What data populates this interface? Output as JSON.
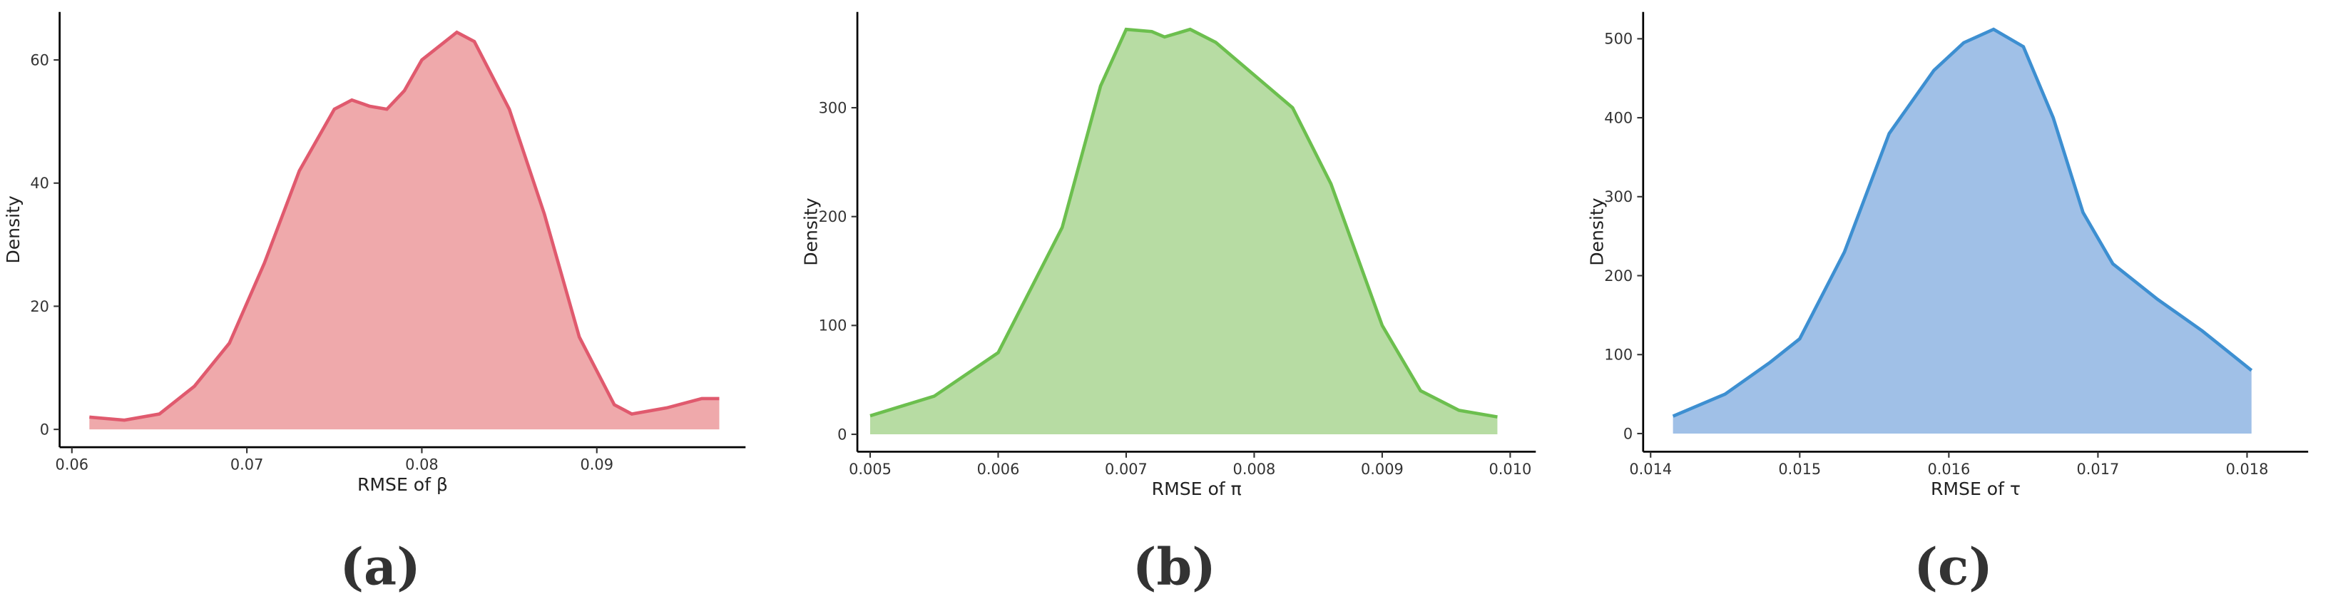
{
  "chart_data": [
    {
      "type": "area",
      "caption": "(a)",
      "x_label": "RMSE of β",
      "y_label": "Density",
      "color": "#e05a6e",
      "fill": "#efa9ab",
      "x": [
        0.061,
        0.063,
        0.065,
        0.067,
        0.069,
        0.071,
        0.073,
        0.075,
        0.076,
        0.077,
        0.078,
        0.079,
        0.08,
        0.082,
        0.083,
        0.085,
        0.087,
        0.089,
        0.091,
        0.092,
        0.094,
        0.096,
        0.097
      ],
      "values": [
        2,
        1.5,
        2.5,
        7,
        14,
        27,
        42,
        52,
        53.5,
        52.5,
        52,
        55,
        60,
        64.5,
        63,
        52,
        35,
        15,
        4,
        2.5,
        3.5,
        5,
        5
      ],
      "xlim": [
        0.0593,
        0.0985
      ],
      "ylim": [
        -2.9,
        67.8
      ],
      "xticks": [
        0.06,
        0.07,
        0.08,
        0.09
      ],
      "yticks": [
        0,
        20,
        40,
        60
      ]
    },
    {
      "type": "area",
      "caption": "(b)",
      "x_label": "RMSE of π",
      "y_label": "Density",
      "color": "#6cbf4e",
      "fill": "#b7dca3",
      "x": [
        0.005,
        0.0055,
        0.006,
        0.0065,
        0.0068,
        0.007,
        0.0072,
        0.0073,
        0.0075,
        0.0077,
        0.008,
        0.0083,
        0.0086,
        0.009,
        0.0093,
        0.0096,
        0.0099
      ],
      "values": [
        17,
        35,
        75,
        190,
        320,
        372,
        370,
        365,
        372,
        360,
        330,
        300,
        230,
        100,
        40,
        22,
        16
      ],
      "xlim": [
        0.0049,
        0.0102
      ],
      "ylim": [
        -16,
        388
      ],
      "xticks": [
        0.005,
        0.006,
        0.007,
        0.008,
        0.009,
        {
          "value": 0.01,
          "label": "0.010"
        }
      ],
      "yticks": [
        0,
        100,
        200,
        300
      ]
    },
    {
      "type": "area",
      "caption": "(c)",
      "x_label": "RMSE of τ",
      "y_label": "Density",
      "color": "#3d8fd1",
      "fill": "#a0c0e7",
      "x": [
        0.01415,
        0.0145,
        0.0148,
        0.015,
        0.0153,
        0.0156,
        0.0159,
        0.0161,
        0.0163,
        0.0165,
        0.0167,
        0.0169,
        0.0171,
        0.0174,
        0.0177,
        0.01803
      ],
      "values": [
        22,
        50,
        90,
        120,
        230,
        380,
        460,
        495,
        512,
        490,
        400,
        280,
        215,
        170,
        130,
        80
      ],
      "xlim": [
        0.01395,
        0.01841
      ],
      "ylim": [
        -23,
        534
      ],
      "xticks": [
        0.014,
        0.015,
        0.016,
        0.017,
        0.018
      ],
      "yticks": [
        0,
        100,
        200,
        300,
        400,
        500
      ]
    }
  ]
}
